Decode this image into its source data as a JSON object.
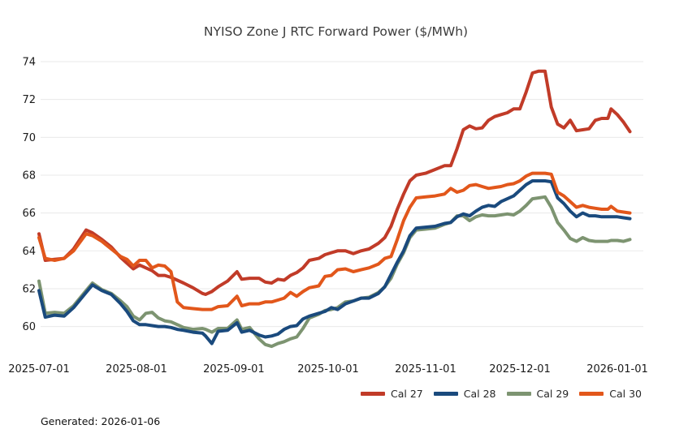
{
  "title": "NYISO Zone J RTC Forward Power ($/MWh)",
  "footer": {
    "generated_label": "Generated: 2026-01-06"
  },
  "chart_data": {
    "type": "line",
    "title": "NYISO Zone J RTC Forward Power ($/MWh)",
    "generated": "2026-01-06",
    "grid": "horizontal",
    "legend_position": "bottom-right",
    "x_axis": {
      "start_date": "2025-07-01",
      "end_date": "2026-01-05",
      "ticks": [
        {
          "day": 0,
          "label": "2025-07-01"
        },
        {
          "day": 31,
          "label": "2025-08-01"
        },
        {
          "day": 62,
          "label": "2025-09-01"
        },
        {
          "day": 92,
          "label": "2025-10-01"
        },
        {
          "day": 123,
          "label": "2025-11-01"
        },
        {
          "day": 153,
          "label": "2025-12-01"
        },
        {
          "day": 184,
          "label": "2026-01-01"
        }
      ]
    },
    "y_axis": {
      "ticks": [
        60,
        62,
        64,
        66,
        68,
        70,
        72,
        74
      ],
      "range": [
        58.3,
        74.7
      ],
      "unit": "$/MWh"
    },
    "x_days": [
      0,
      2,
      5,
      8,
      11,
      15,
      17,
      20,
      23,
      26,
      28,
      30,
      32,
      34,
      36,
      38,
      40,
      42,
      44,
      46,
      49,
      52,
      53,
      55,
      57,
      60,
      63,
      64.5,
      67,
      70,
      72,
      74,
      76,
      78,
      80,
      82,
      84,
      86,
      89,
      91,
      93,
      95,
      97.5,
      100,
      102.5,
      105,
      108,
      110,
      112,
      114,
      116,
      118,
      120,
      123,
      126,
      129,
      131,
      133,
      135,
      137,
      139,
      141,
      143,
      145,
      147,
      149,
      151,
      153,
      155,
      157,
      159,
      161,
      163,
      165,
      167,
      169,
      171,
      173,
      175,
      177,
      179,
      181,
      182,
      184,
      186,
      188
    ],
    "series": [
      {
        "name": "Cal 27",
        "color": "#c13b28",
        "values": [
          64.9,
          63.5,
          63.55,
          63.6,
          64.1,
          65.1,
          64.95,
          64.6,
          64.2,
          63.65,
          63.35,
          63.05,
          63.25,
          63.1,
          62.95,
          62.7,
          62.7,
          62.6,
          62.45,
          62.3,
          62.05,
          61.75,
          61.7,
          61.85,
          62.1,
          62.4,
          62.9,
          62.5,
          62.55,
          62.55,
          62.35,
          62.3,
          62.5,
          62.45,
          62.7,
          62.85,
          63.1,
          63.5,
          63.6,
          63.8,
          63.9,
          64.0,
          64.0,
          63.85,
          64.0,
          64.1,
          64.4,
          64.7,
          65.3,
          66.2,
          67.0,
          67.7,
          68.0,
          68.1,
          68.3,
          68.5,
          68.5,
          69.4,
          70.4,
          70.6,
          70.45,
          70.5,
          70.9,
          71.1,
          71.2,
          71.3,
          71.5,
          71.5,
          72.4,
          73.4,
          73.5,
          73.5,
          71.6,
          70.7,
          70.5,
          70.9,
          70.35,
          70.4,
          70.45,
          70.9,
          71.0,
          71.0,
          71.5,
          71.2,
          70.8,
          70.3
        ]
      },
      {
        "name": "Cal 28",
        "color": "#1a4a7d",
        "values": [
          61.9,
          60.5,
          60.6,
          60.55,
          61.0,
          61.8,
          62.2,
          61.9,
          61.7,
          61.2,
          60.8,
          60.3,
          60.1,
          60.1,
          60.05,
          60.0,
          60.0,
          59.95,
          59.85,
          59.8,
          59.7,
          59.65,
          59.5,
          59.1,
          59.75,
          59.8,
          60.2,
          59.7,
          59.8,
          59.55,
          59.45,
          59.5,
          59.6,
          59.85,
          60.0,
          60.05,
          60.4,
          60.55,
          60.7,
          60.8,
          61.0,
          60.9,
          61.2,
          61.35,
          61.5,
          61.5,
          61.75,
          62.1,
          62.75,
          63.4,
          64.0,
          64.8,
          65.2,
          65.25,
          65.3,
          65.45,
          65.5,
          65.8,
          65.95,
          65.85,
          66.1,
          66.3,
          66.4,
          66.35,
          66.6,
          66.75,
          66.9,
          67.2,
          67.5,
          67.7,
          67.7,
          67.7,
          67.65,
          66.8,
          66.5,
          66.1,
          65.8,
          66.0,
          65.85,
          65.85,
          65.8,
          65.8,
          65.8,
          65.8,
          65.75,
          65.7
        ]
      },
      {
        "name": "Cal 29",
        "color": "#7d9471",
        "values": [
          62.4,
          60.7,
          60.75,
          60.7,
          61.1,
          61.9,
          62.3,
          61.95,
          61.75,
          61.35,
          61.05,
          60.55,
          60.35,
          60.7,
          60.75,
          60.45,
          60.3,
          60.25,
          60.1,
          59.95,
          59.85,
          59.9,
          59.85,
          59.7,
          59.9,
          59.9,
          60.35,
          59.85,
          59.95,
          59.35,
          59.05,
          58.95,
          59.1,
          59.2,
          59.35,
          59.45,
          59.9,
          60.45,
          60.65,
          60.85,
          60.9,
          61.0,
          61.3,
          61.35,
          61.5,
          61.55,
          61.8,
          62.1,
          62.55,
          63.3,
          63.9,
          64.7,
          65.1,
          65.15,
          65.2,
          65.4,
          65.5,
          65.85,
          65.85,
          65.6,
          65.8,
          65.9,
          65.85,
          65.85,
          65.9,
          65.95,
          65.9,
          66.1,
          66.4,
          66.75,
          66.8,
          66.85,
          66.3,
          65.5,
          65.1,
          64.65,
          64.5,
          64.7,
          64.55,
          64.5,
          64.5,
          64.5,
          64.55,
          64.55,
          64.5,
          64.6
        ]
      },
      {
        "name": "Cal 30",
        "color": "#e2571b",
        "values": [
          64.7,
          63.6,
          63.5,
          63.6,
          64.0,
          64.9,
          64.8,
          64.5,
          64.1,
          63.7,
          63.55,
          63.2,
          63.5,
          63.5,
          63.1,
          63.25,
          63.2,
          62.9,
          61.3,
          61.0,
          60.95,
          60.9,
          60.9,
          60.9,
          61.05,
          61.1,
          61.6,
          61.1,
          61.2,
          61.2,
          61.3,
          61.3,
          61.4,
          61.5,
          61.8,
          61.6,
          61.85,
          62.05,
          62.15,
          62.65,
          62.7,
          63.0,
          63.05,
          62.9,
          63.0,
          63.1,
          63.3,
          63.6,
          63.7,
          64.6,
          65.6,
          66.3,
          66.8,
          66.85,
          66.9,
          67.0,
          67.3,
          67.1,
          67.2,
          67.45,
          67.5,
          67.4,
          67.3,
          67.35,
          67.4,
          67.5,
          67.55,
          67.7,
          67.95,
          68.1,
          68.1,
          68.1,
          68.05,
          67.1,
          66.9,
          66.6,
          66.3,
          66.4,
          66.3,
          66.25,
          66.2,
          66.2,
          66.35,
          66.1,
          66.05,
          66.0
        ]
      }
    ]
  }
}
